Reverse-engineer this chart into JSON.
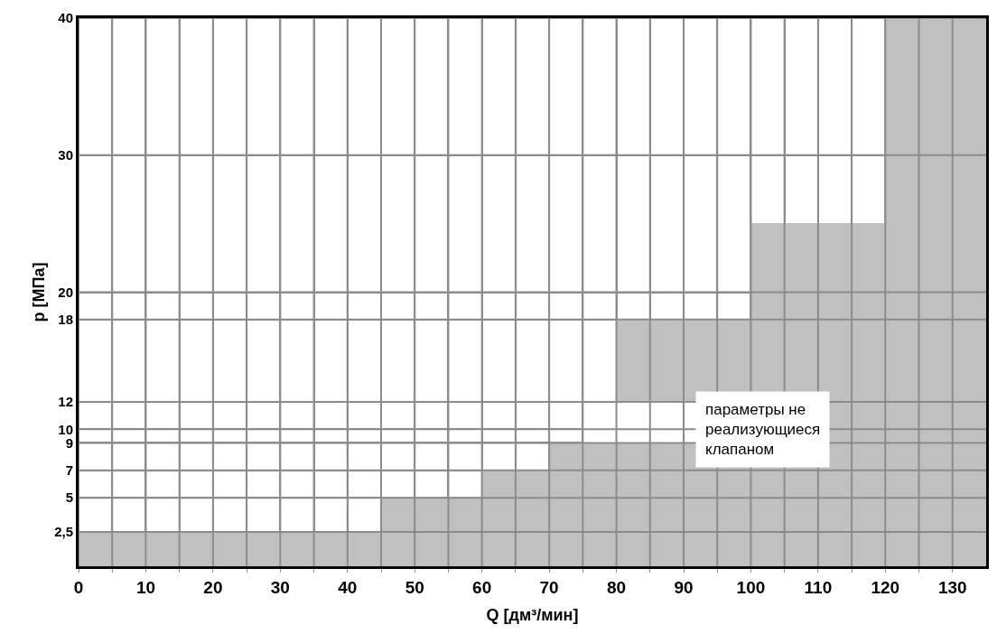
{
  "chart_data": {
    "type": "area",
    "xlabel": "Q [дм³/мин]",
    "ylabel": "p [МПа]",
    "x": [
      0,
      45,
      45,
      60,
      60,
      70,
      70,
      80,
      80,
      100,
      100,
      120,
      120,
      135
    ],
    "series": [
      {
        "color": "#c0c0c0",
        "values": [
          2.5,
          2.5,
          5,
          5,
          7,
          7,
          9,
          9,
          18,
          18,
          25,
          25,
          40,
          40
        ]
      },
      {
        "type": "bar",
        "color": "#ffffff",
        "x": [
          85
        ],
        "base": [
          9
        ],
        "values": [
          3
        ]
      }
    ],
    "xlim": [
      0,
      135
    ],
    "xticks": [
      0,
      {
        "value": 5,
        "label": null
      },
      10,
      {
        "value": 15,
        "label": null
      },
      20,
      {
        "value": 25,
        "label": null
      },
      30,
      {
        "value": 35,
        "label": null
      },
      40,
      {
        "value": 45,
        "label": null
      },
      50,
      {
        "value": 55,
        "label": null
      },
      60,
      {
        "value": 65,
        "label": null
      },
      70,
      {
        "value": 75,
        "label": null
      },
      80,
      {
        "value": 85,
        "label": null
      },
      90,
      {
        "value": 95,
        "label": null
      },
      100,
      {
        "value": 105,
        "label": null
      },
      110,
      {
        "value": 115,
        "label": null
      },
      120,
      {
        "value": 125,
        "label": null
      },
      130
    ],
    "ylim": [
      0,
      40
    ],
    "yticks": [
      {
        "value": 2.5,
        "label": "2,5"
      },
      5,
      7,
      9,
      10,
      12,
      18,
      20,
      30,
      40
    ],
    "grid": true,
    "line_style": "solid",
    "annotations": [
      "параметры не\nреализующиеся\nклапаном"
    ]
  }
}
